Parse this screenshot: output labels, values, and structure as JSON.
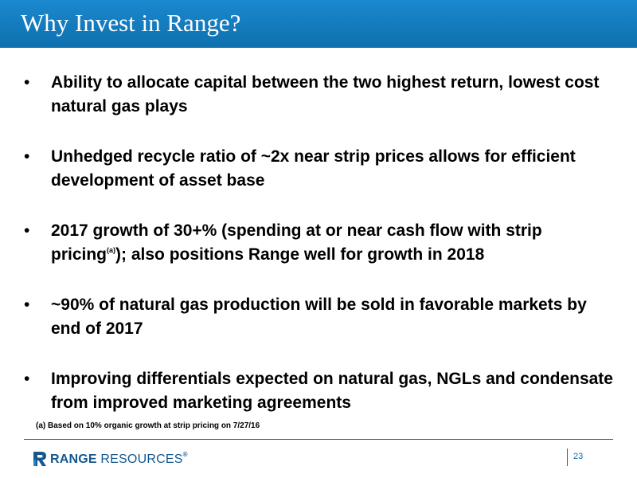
{
  "slide": {
    "title": "Why Invest in Range?"
  },
  "bullets": [
    {
      "marker": "•",
      "text": "Ability to allocate capital between the two highest return, lowest cost natural gas plays"
    },
    {
      "marker": "•",
      "text": "Unhedged recycle ratio of ~2x near strip prices allows for efficient development of asset base"
    },
    {
      "marker": "•",
      "text_before": "2017 growth of 30+% (spending at or near cash flow with strip pricing",
      "superscript": "(a)",
      "text_after": "); also positions Range well for growth in 2018"
    },
    {
      "marker": "•",
      "text": "~90% of natural gas production will be sold in favorable markets by end of 2017"
    },
    {
      "marker": "•",
      "text": "Improving differentials expected on natural gas, NGLs and condensate from improved marketing agreements"
    }
  ],
  "footnote": "(a)  Based on 10% organic growth at strip pricing on 7/27/16",
  "footer": {
    "logo_word1": "RANGE",
    "logo_word2": " RESOURCES",
    "logo_reg": "®",
    "logo_icon": "range-r-logo-icon",
    "page_number": "23"
  },
  "colors": {
    "title_bar": "#1a89cf",
    "accent": "#0f6fae",
    "logo_text": "#15588f"
  }
}
